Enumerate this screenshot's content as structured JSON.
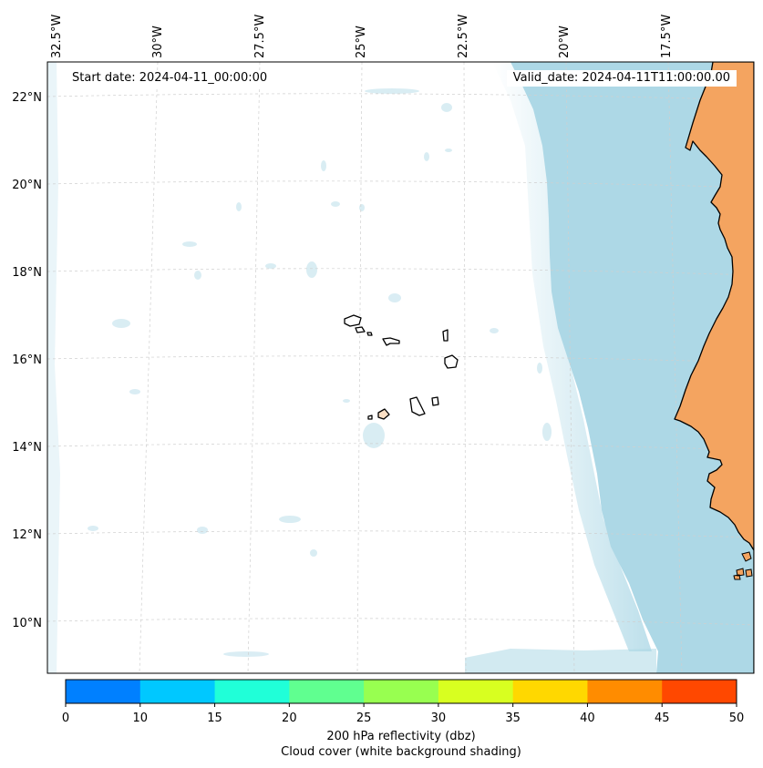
{
  "map": {
    "start_date_text": "Start date: 2024-04-11_00:00:00",
    "valid_date_text": "Valid_date: 2024-04-11T11:00:00.00",
    "lon_labels": [
      "32.5°W",
      "30°W",
      "27.5°W",
      "25°W",
      "22.5°W",
      "20°W",
      "17.5°W"
    ],
    "lat_labels": [
      "22°N",
      "20°N",
      "18°N",
      "16°N",
      "14°N",
      "12°N",
      "10°N"
    ],
    "colors": {
      "ocean_cloud": "#add8e6",
      "land": "#f4a460",
      "coast": "#000000",
      "graticule": "#cfcfcf"
    }
  },
  "colorbar": {
    "ticks": [
      "0",
      "10",
      "15",
      "20",
      "25",
      "30",
      "35",
      "40",
      "45",
      "50"
    ],
    "colors": [
      "#0080ff",
      "#00c8ff",
      "#20ffd8",
      "#60ff90",
      "#98ff50",
      "#d8ff20",
      "#ffd800",
      "#ff8c00",
      "#ff4800"
    ],
    "label_line1": "200 hPa reflectivity (dbz)",
    "label_line2": "Cloud cover (white background shading)"
  }
}
